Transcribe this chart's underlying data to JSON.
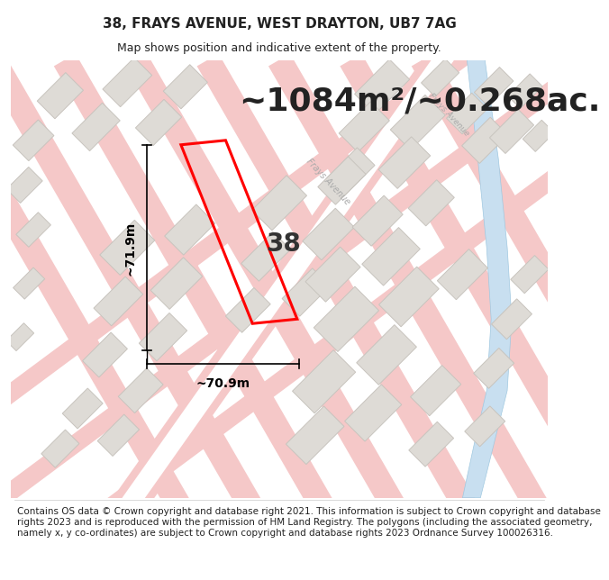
{
  "title_line1": "38, FRAYS AVENUE, WEST DRAYTON, UB7 7AG",
  "title_line2": "Map shows position and indicative extent of the property.",
  "area_text": "~1084m²/~0.268ac.",
  "label_38": "38",
  "dim_width": "~70.9m",
  "dim_height": "~71.9m",
  "footer": "Contains OS data © Crown copyright and database right 2021. This information is subject to Crown copyright and database rights 2023 and is reproduced with the permission of HM Land Registry. The polygons (including the associated geometry, namely x, y co-ordinates) are subject to Crown copyright and database rights 2023 Ordnance Survey 100026316.",
  "bg_color": "#f2efea",
  "road_color": "#f5c8c8",
  "road_center_color": "#ffffff",
  "building_color": "#dedbd6",
  "building_edge": "#c8c4be",
  "highlight_color": "#ff0000",
  "water_color": "#c8dff0",
  "water_edge": "#a0c8e0",
  "text_color": "#222222",
  "dim_color": "#000000",
  "label_color": "#333333",
  "road_label_color": "#999999",
  "title_fontsize": 11,
  "subtitle_fontsize": 9,
  "area_fontsize": 26,
  "label_fontsize": 20,
  "dim_fontsize": 10,
  "footer_fontsize": 7.5
}
